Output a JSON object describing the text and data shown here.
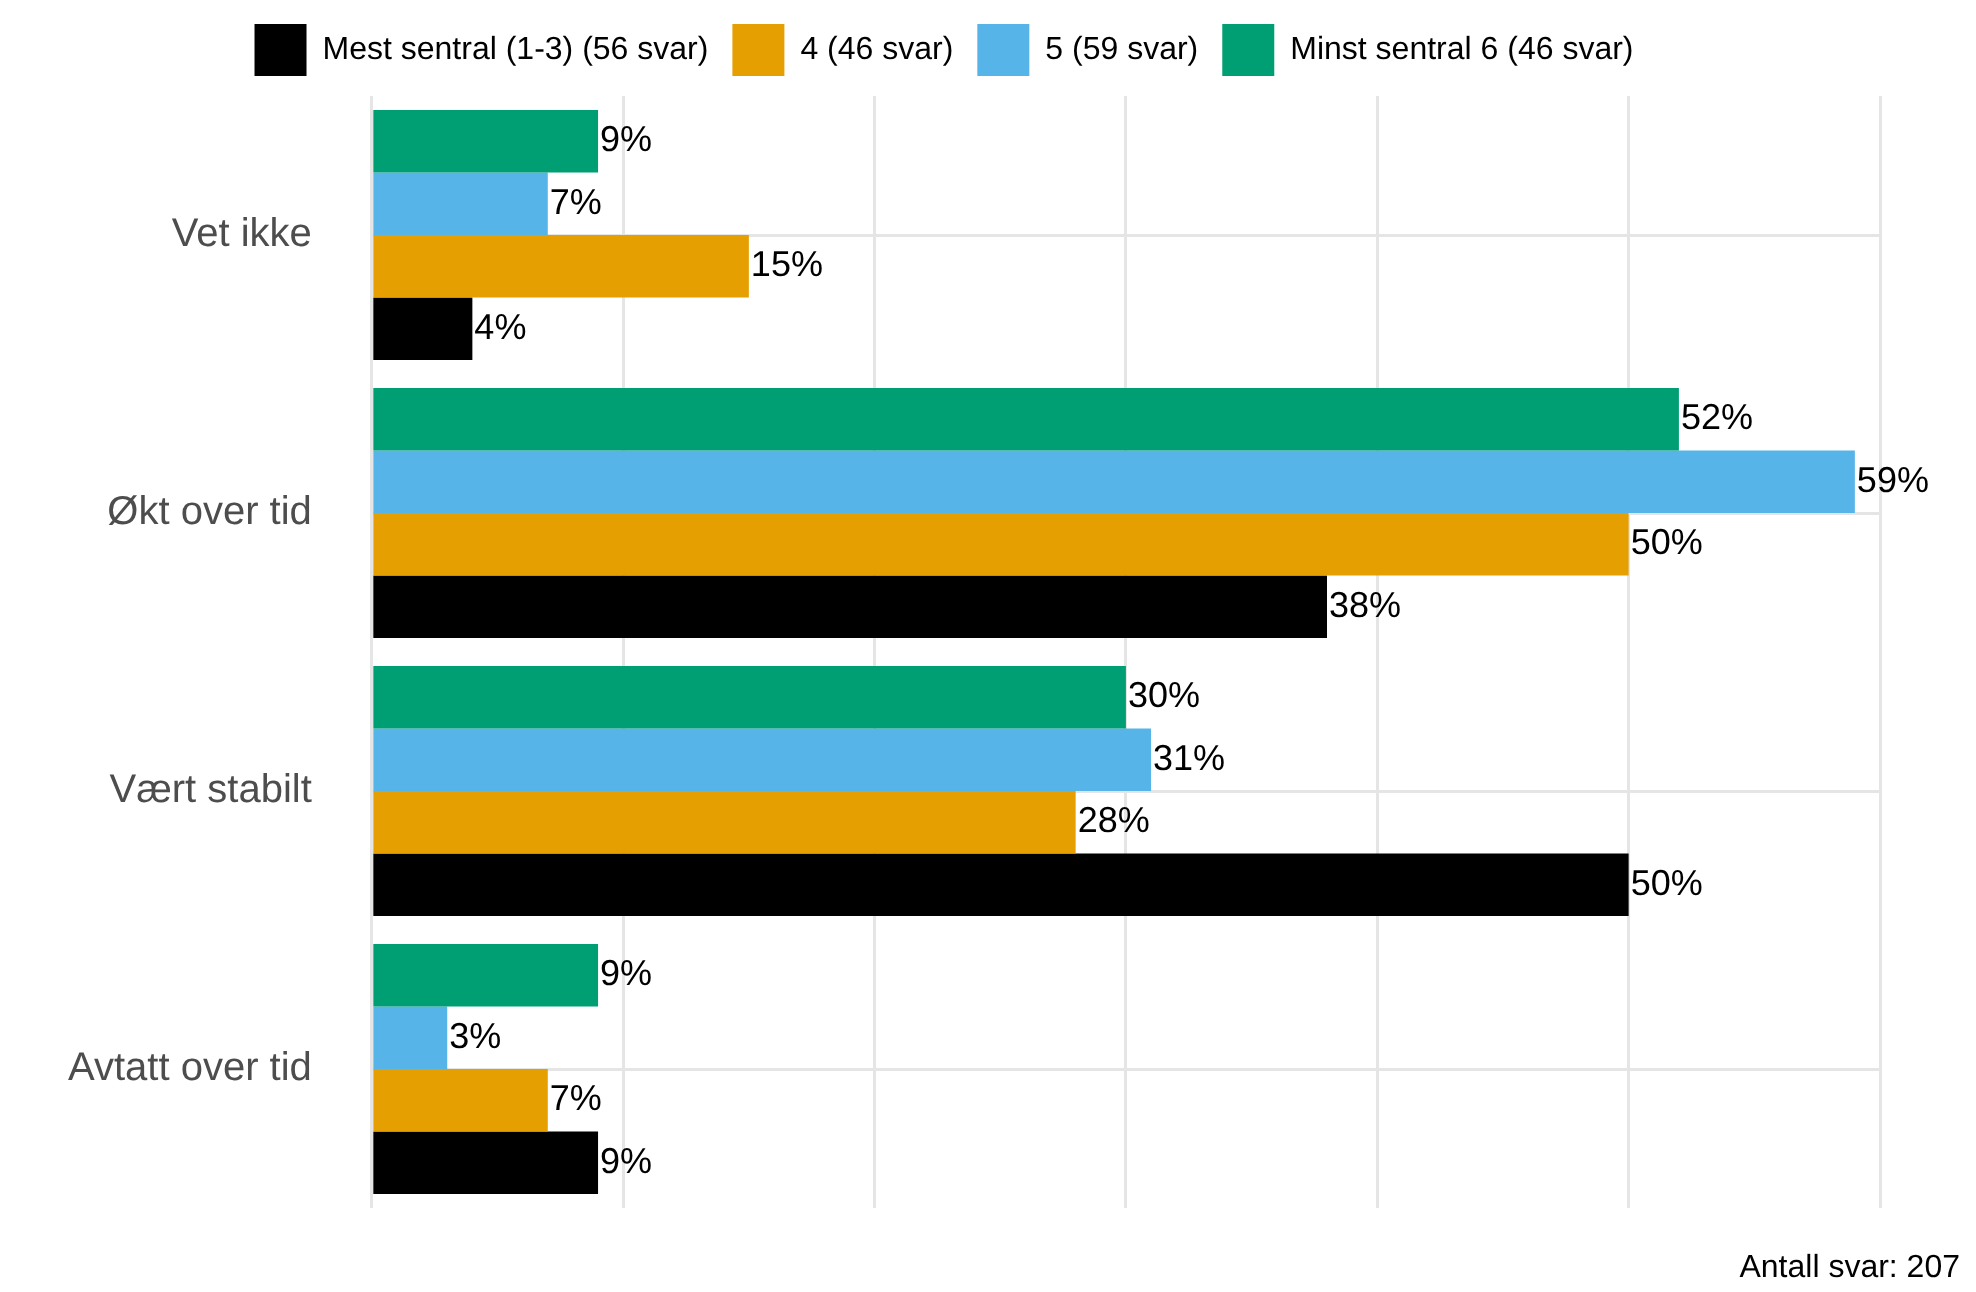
{
  "chart_data": {
    "type": "bar",
    "orientation": "horizontal",
    "categories": [
      "Vet ikke",
      "Økt over tid",
      "Vært stabilt",
      "Avtatt over tid"
    ],
    "series": [
      {
        "name": "Mest sentral (1-3) (56 svar)",
        "color": "#000000",
        "values": [
          4,
          38,
          50,
          9
        ],
        "value_labels": [
          "4%",
          "38%",
          "50%",
          "9%"
        ]
      },
      {
        "name": "4 (46 svar)",
        "color": "#e69f00",
        "values": [
          15,
          50,
          28,
          7
        ],
        "value_labels": [
          "15%",
          "50%",
          "28%",
          "7%"
        ]
      },
      {
        "name": "5 (59 svar)",
        "color": "#56b4e9",
        "values": [
          7,
          59,
          31,
          3
        ],
        "value_labels": [
          "7%",
          "59%",
          "31%",
          "3%"
        ]
      },
      {
        "name": "Minst sentral 6 (46 svar)",
        "color": "#009e73",
        "values": [
          9,
          52,
          30,
          9
        ],
        "value_labels": [
          "9%",
          "52%",
          "30%",
          "9%"
        ]
      }
    ],
    "xlim": [
      0,
      60
    ],
    "xticks": [
      {
        "value": 0,
        "label": null
      },
      {
        "value": 10,
        "label": null
      },
      {
        "value": 20,
        "label": null
      },
      {
        "value": 30,
        "label": null
      },
      {
        "value": 40,
        "label": null
      },
      {
        "value": 50,
        "label": null
      },
      {
        "value": 60,
        "label": null
      }
    ],
    "tick_labels": "y",
    "grid": true,
    "legend": "top",
    "annotations": [
      "Antall svar: 207"
    ]
  }
}
